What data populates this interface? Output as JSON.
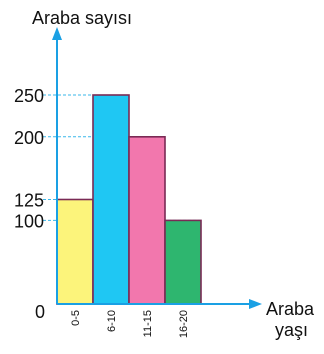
{
  "chart_data": {
    "type": "bar",
    "xlabel": [
      "Araba",
      "yaşı"
    ],
    "ylabel": "Araba sayısı",
    "categories": [
      "0-5",
      "6-10",
      "11-15",
      "16-20"
    ],
    "values": [
      125,
      250,
      200,
      100
    ],
    "yticks": [
      0,
      100,
      125,
      200,
      250
    ],
    "ylim": [
      0,
      250
    ],
    "grid": false,
    "legend": "none",
    "bar_colors": [
      "#fcf47b",
      "#1fc7f3",
      "#f277ad",
      "#2eb66f"
    ],
    "bar_stroke": "#7a2a55",
    "axis_color": "#1aa0e4",
    "guide_color": "#3ab7ea"
  }
}
